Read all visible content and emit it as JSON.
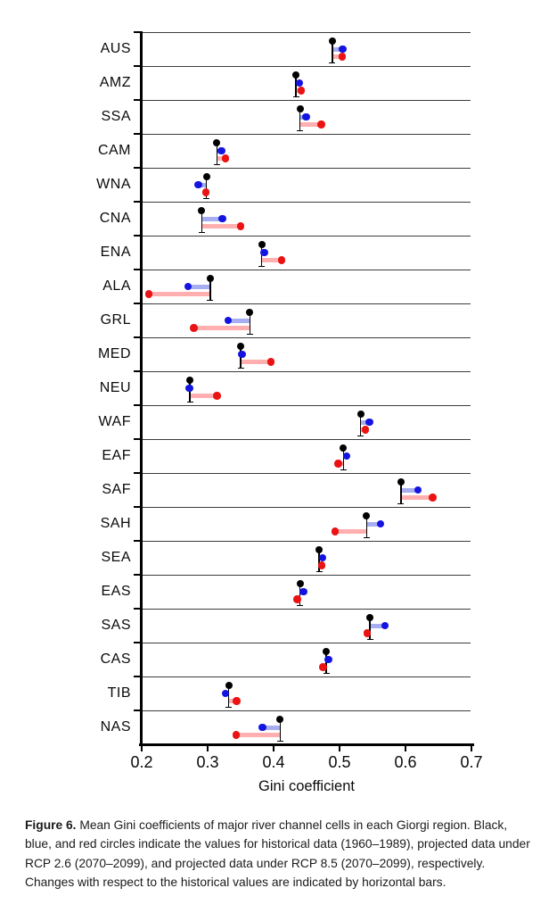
{
  "figure": {
    "xlabel": "Gini coefficient"
  },
  "caption": {
    "label": "Figure 6.",
    "text": " Mean Gini coefficients of major river channel cells in each Giorgi region. Black, blue, and red circles indicate the values for historical data (1960–1989), projected data under RCP 2.6 (2070–2099), and projected data under RCP 8.5 (2070–2099), respectively. Changes with respect to the historical values are indicated by horizontal bars."
  },
  "chart_data": {
    "type": "scatter",
    "subtype": "horizontal-dot-plot-with-change-bars",
    "title": "",
    "xlabel": "Gini coefficient",
    "xlim": [
      0.2,
      0.7
    ],
    "x_ticks": [
      0.2,
      0.3,
      0.4,
      0.5,
      0.6,
      0.7
    ],
    "grid": "horizontal row separators",
    "legend_position": "none (explained in caption)",
    "categories": [
      "AUS",
      "AMZ",
      "SSA",
      "CAM",
      "WNA",
      "CNA",
      "ENA",
      "ALA",
      "GRL",
      "MED",
      "NEU",
      "WAF",
      "EAF",
      "SAF",
      "SAH",
      "SEA",
      "EAS",
      "SAS",
      "CAS",
      "TIB",
      "NAS"
    ],
    "series": [
      {
        "name": "Historical (1960–1989)",
        "color": "#000000",
        "values": [
          0.489,
          0.434,
          0.44,
          0.314,
          0.298,
          0.291,
          0.382,
          0.304,
          0.364,
          0.35,
          0.273,
          0.532,
          0.506,
          0.593,
          0.541,
          0.469,
          0.44,
          0.546,
          0.48,
          0.332,
          0.41
        ]
      },
      {
        "name": "RCP 2.6 (2070–2099)",
        "color": "#1414e0",
        "values": [
          0.505,
          0.439,
          0.449,
          0.321,
          0.286,
          0.322,
          0.386,
          0.27,
          0.331,
          0.352,
          0.272,
          0.545,
          0.511,
          0.619,
          0.562,
          0.474,
          0.445,
          0.569,
          0.483,
          0.327,
          0.383
        ]
      },
      {
        "name": "RCP 8.5 (2070–2099)",
        "color": "#ea1212",
        "values": [
          0.504,
          0.442,
          0.472,
          0.327,
          0.297,
          0.35,
          0.412,
          0.211,
          0.279,
          0.396,
          0.314,
          0.539,
          0.498,
          0.641,
          0.493,
          0.473,
          0.436,
          0.542,
          0.475,
          0.344,
          0.343
        ]
      }
    ],
    "bar_colors": {
      "rcp26": "#a6adf0",
      "rcp85": "#ffafaf"
    }
  }
}
